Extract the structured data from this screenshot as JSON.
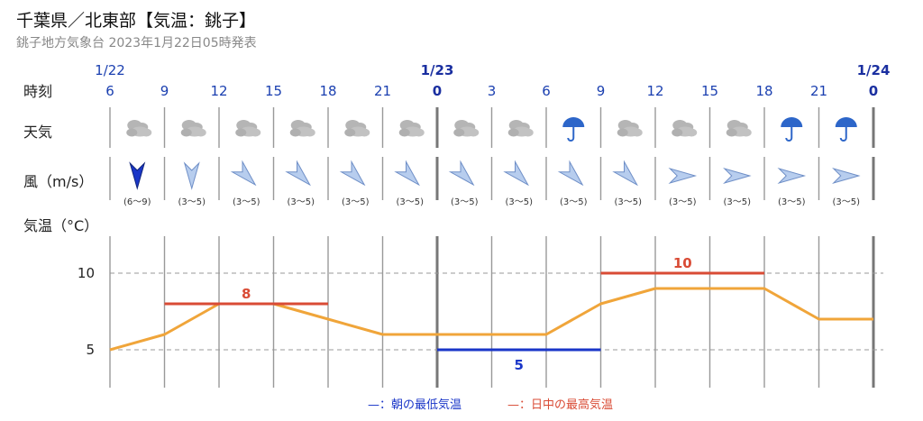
{
  "header": {
    "title": "千葉県／北東部【気温：銚子】",
    "subtitle": "銚子地方気象台 2023年1月22日05時発表"
  },
  "labels": {
    "time": "時刻",
    "weather": "天気",
    "wind": "風（m/s）",
    "temp": "気温（°C）"
  },
  "dates": [
    {
      "label": "1/22",
      "slot": 0,
      "bold": false
    },
    {
      "label": "1/23",
      "slot": 6,
      "bold": true
    },
    {
      "label": "1/24",
      "slot": 14,
      "bold": true
    }
  ],
  "hours": [
    "6",
    "9",
    "12",
    "15",
    "18",
    "21",
    "0",
    "3",
    "6",
    "9",
    "12",
    "15",
    "18",
    "21",
    "0"
  ],
  "weather": [
    "cloudy-icon",
    "cloudy-icon",
    "cloudy-icon",
    "cloudy-icon",
    "cloudy-icon",
    "cloudy-icon",
    "cloudy-icon",
    "cloudy-icon",
    "umbrella-icon",
    "cloudy-icon",
    "cloudy-icon",
    "cloudy-icon",
    "umbrella-icon",
    "umbrella-icon"
  ],
  "wind": [
    {
      "range": "(6〜9)",
      "dir": "N",
      "strong": true
    },
    {
      "range": "(3〜5)",
      "dir": "N",
      "strong": false
    },
    {
      "range": "(3〜5)",
      "dir": "NE",
      "strong": false
    },
    {
      "range": "(3〜5)",
      "dir": "NE",
      "strong": false
    },
    {
      "range": "(3〜5)",
      "dir": "NE",
      "strong": false
    },
    {
      "range": "(3〜5)",
      "dir": "NE",
      "strong": false
    },
    {
      "range": "(3〜5)",
      "dir": "NE",
      "strong": false
    },
    {
      "range": "(3〜5)",
      "dir": "NE",
      "strong": false
    },
    {
      "range": "(3〜5)",
      "dir": "NE",
      "strong": false
    },
    {
      "range": "(3〜5)",
      "dir": "NE",
      "strong": false
    },
    {
      "range": "(3〜5)",
      "dir": "E",
      "strong": false
    },
    {
      "range": "(3〜5)",
      "dir": "E",
      "strong": false
    },
    {
      "range": "(3〜5)",
      "dir": "E",
      "strong": false
    },
    {
      "range": "(3〜5)",
      "dir": "E",
      "strong": false
    }
  ],
  "chart_data": {
    "type": "line",
    "yticks": [
      5,
      10
    ],
    "ylim": [
      3.8,
      12.8
    ],
    "grid": true,
    "series": [
      {
        "values": [
          5,
          6,
          8,
          8,
          7,
          6,
          6,
          6,
          6,
          8,
          9,
          9,
          9,
          7,
          7
        ],
        "color": "#f0a53a"
      }
    ],
    "max_temp": {
      "value": 8,
      "label": "8",
      "from_slot": 1,
      "to_slot": 4,
      "color": "#d94b35"
    },
    "max_temp_next": {
      "value": 10,
      "label": "10",
      "from_slot": 9,
      "to_slot": 12,
      "color": "#d94b35"
    },
    "min_temp": {
      "value": 5,
      "label": "5",
      "from_slot": 6,
      "to_slot": 9,
      "color": "#1a36c8"
    }
  },
  "legend": {
    "min": "—：朝の最低気温",
    "max": "—：日中の最高気温"
  }
}
